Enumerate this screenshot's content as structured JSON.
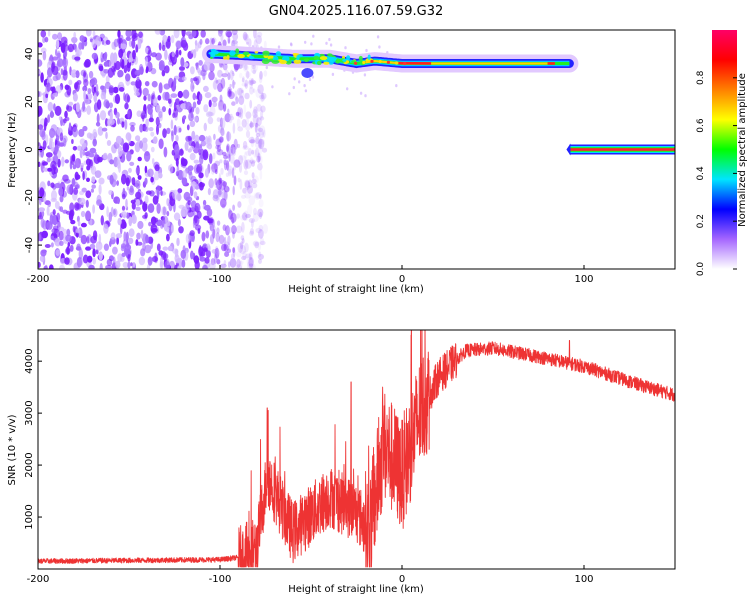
{
  "title": "GN04.2025.116.07.59.G32",
  "chart_data": [
    {
      "type": "heatmap",
      "xlabel": "Height of straight line (km)",
      "ylabel": "Frequency (Hz)",
      "xlim": [
        -200,
        150
      ],
      "ylim": [
        -50,
        50
      ],
      "x_ticks": [
        -200,
        -100,
        0,
        100
      ],
      "y_ticks": [
        -40,
        -20,
        0,
        20,
        40
      ],
      "colorbar": {
        "label": "Normalized spectral amplitude",
        "range": [
          0,
          1
        ],
        "ticks": [
          "0.0",
          "0.2",
          "0.4",
          "0.6",
          "0.8"
        ],
        "colormap": [
          "#ffffff",
          "#a566ff",
          "#0000ff",
          "#00e5ff",
          "#00ff00",
          "#ffff00",
          "#ff8000",
          "#ff0000",
          "#ff0066"
        ]
      },
      "features": {
        "noise_region_x": [
          -200,
          -90
        ],
        "tone_track": [
          {
            "x": -105,
            "f": 40
          },
          {
            "x": -80,
            "f": 39
          },
          {
            "x": -60,
            "f": 38
          },
          {
            "x": -40,
            "f": 38
          },
          {
            "x": -25,
            "f": 36
          },
          {
            "x": -15,
            "f": 37
          },
          {
            "x": 0,
            "f": 36
          },
          {
            "x": 30,
            "f": 36
          },
          {
            "x": 92,
            "f": 36
          }
        ],
        "dc_line": {
          "x_start": 92,
          "x_end": 150,
          "f": 0
        }
      }
    },
    {
      "type": "line",
      "xlabel": "Height of straight line (km)",
      "ylabel": "SNR (10 * v/v)",
      "xlim": [
        -200,
        150
      ],
      "ylim": [
        0,
        4600
      ],
      "x_ticks": [
        -200,
        -100,
        0,
        100
      ],
      "y_ticks": [
        1000,
        2000,
        3000,
        4000
      ],
      "color": "#ee3333",
      "envelope": [
        {
          "x": -200,
          "y": 150
        },
        {
          "x": -100,
          "y": 180
        },
        {
          "x": -90,
          "y": 220
        },
        {
          "x": -80,
          "y": 400
        },
        {
          "x": -74,
          "y": 1800
        },
        {
          "x": -60,
          "y": 700
        },
        {
          "x": -40,
          "y": 1400
        },
        {
          "x": -25,
          "y": 1100
        },
        {
          "x": -18,
          "y": 700
        },
        {
          "x": -10,
          "y": 2400
        },
        {
          "x": 0,
          "y": 1800
        },
        {
          "x": 10,
          "y": 3000
        },
        {
          "x": 20,
          "y": 3700
        },
        {
          "x": 35,
          "y": 4200
        },
        {
          "x": 50,
          "y": 4250
        },
        {
          "x": 80,
          "y": 4050
        },
        {
          "x": 100,
          "y": 3900
        },
        {
          "x": 130,
          "y": 3550
        },
        {
          "x": 150,
          "y": 3350
        }
      ],
      "spikes": [
        {
          "x": -74,
          "y": 3100
        },
        {
          "x": -28,
          "y": 3600
        },
        {
          "x": 5,
          "y": 4500
        },
        {
          "x": 92,
          "y": 4400
        }
      ]
    }
  ]
}
